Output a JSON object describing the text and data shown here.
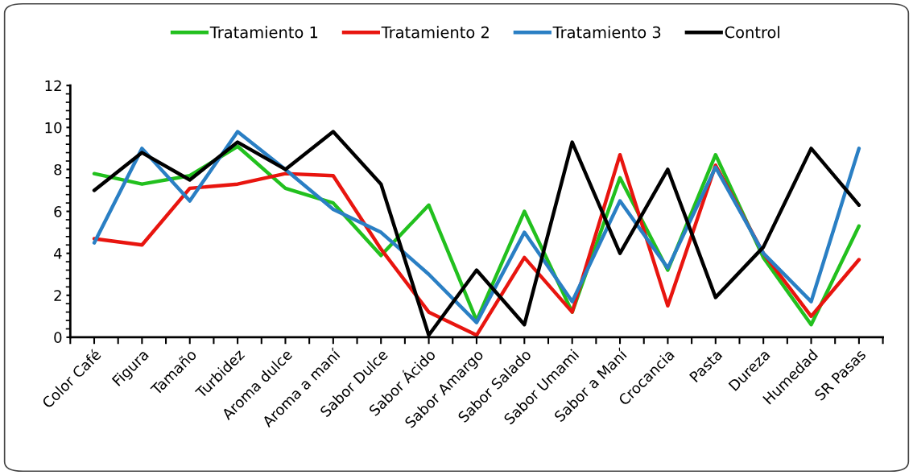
{
  "chart_data": {
    "type": "line",
    "categories": [
      "Color Café",
      "Figura",
      "Tamaño",
      "Turbidez",
      "Aroma dulce",
      "Aroma a maní",
      "Sabor Dulce",
      "Sabor Ácido",
      "Sabor Amargo",
      "Sabor Salado",
      "Sabor Umami",
      "Sabor a Maní",
      "Crocancia",
      "Pasta",
      "Dureza",
      "Humedad",
      "SR Pasas"
    ],
    "series": [
      {
        "name": "Tratamiento 1",
        "color": "#22c01e",
        "values": [
          7.8,
          7.3,
          7.7,
          9.1,
          7.1,
          6.4,
          3.9,
          6.3,
          0.8,
          6.0,
          1.2,
          7.6,
          3.2,
          8.7,
          3.8,
          0.6,
          5.3
        ]
      },
      {
        "name": "Tratamiento 2",
        "color": "#e8150f",
        "values": [
          4.7,
          4.4,
          7.1,
          7.3,
          7.8,
          7.7,
          4.2,
          1.2,
          0.1,
          3.8,
          1.2,
          8.7,
          1.5,
          8.2,
          4.0,
          1.0,
          3.7
        ]
      },
      {
        "name": "Tratamiento 3",
        "color": "#2a7fc4",
        "values": [
          4.5,
          9.0,
          6.5,
          9.8,
          8.0,
          6.1,
          5.0,
          3.0,
          0.7,
          5.0,
          1.7,
          6.5,
          3.3,
          8.1,
          4.0,
          1.7,
          9.0
        ]
      },
      {
        "name": "Control",
        "color": "#000000",
        "values": [
          7.0,
          8.8,
          7.5,
          9.3,
          8.0,
          9.8,
          7.3,
          0.1,
          3.2,
          0.6,
          9.3,
          4.0,
          8.0,
          1.9,
          4.3,
          9.0,
          6.3
        ]
      }
    ],
    "ylim": [
      0,
      12
    ],
    "yticks": [
      0,
      2,
      4,
      6,
      8,
      10,
      12
    ],
    "grid": false,
    "legend": "top",
    "marker": "none",
    "line_style": "solid"
  }
}
